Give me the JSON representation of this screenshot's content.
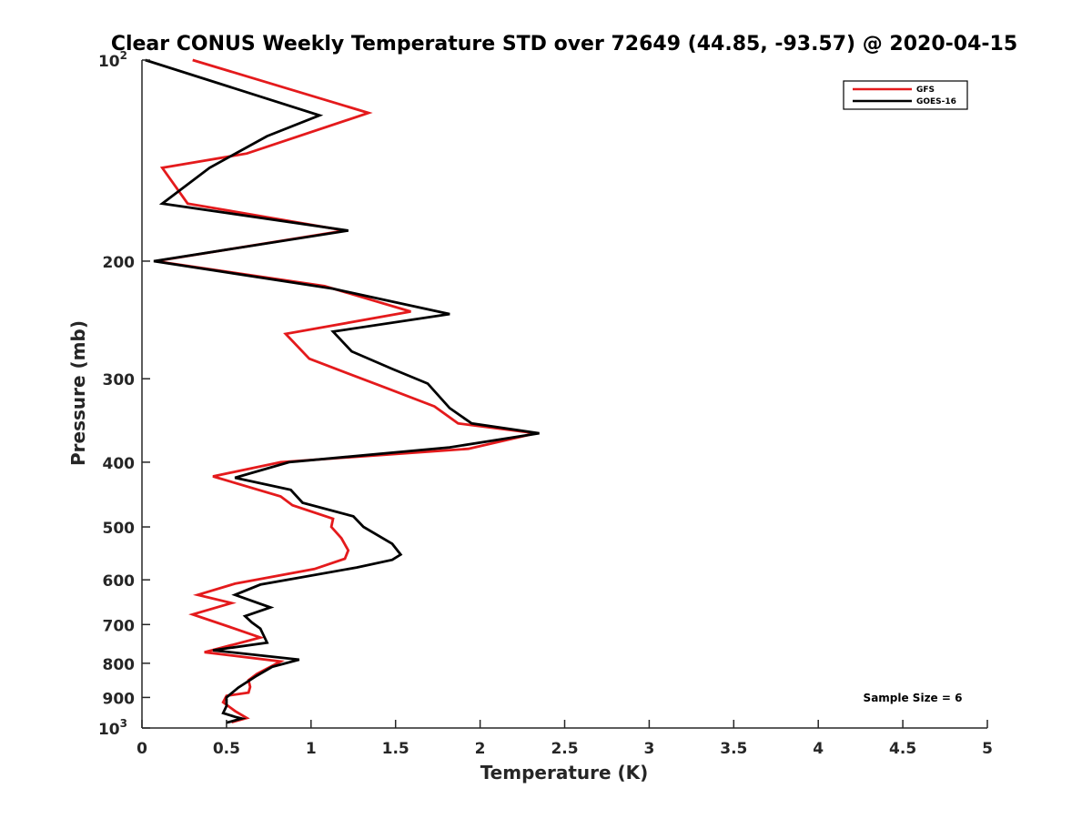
{
  "chart_data": {
    "type": "line",
    "title": "Clear CONUS Weekly Temperature STD over 72649 (44.85, -93.57) @ 2020-04-15",
    "xlabel": "Temperature (K)",
    "ylabel": "Pressure (mb)",
    "xlim": [
      0,
      5
    ],
    "ylim": [
      100,
      1000
    ],
    "yscale": "log",
    "y_reversed": true,
    "grid": false,
    "legend_position": "top-right",
    "x_ticks": [
      {
        "value": 0,
        "label": "0"
      },
      {
        "value": 0.5,
        "label": "0.5"
      },
      {
        "value": 1,
        "label": "1"
      },
      {
        "value": 1.5,
        "label": "1.5"
      },
      {
        "value": 2,
        "label": "2"
      },
      {
        "value": 2.5,
        "label": "2.5"
      },
      {
        "value": 3,
        "label": "3"
      },
      {
        "value": 3.5,
        "label": "3.5"
      },
      {
        "value": 4,
        "label": "4"
      },
      {
        "value": 4.5,
        "label": "4.5"
      },
      {
        "value": 5,
        "label": "5"
      }
    ],
    "y_ticks": [
      {
        "value": 100,
        "base": "10",
        "exp": "2"
      },
      {
        "value": 200,
        "base": "200",
        "exp": ""
      },
      {
        "value": 300,
        "base": "300",
        "exp": ""
      },
      {
        "value": 400,
        "base": "400",
        "exp": ""
      },
      {
        "value": 500,
        "base": "500",
        "exp": ""
      },
      {
        "value": 600,
        "base": "600",
        "exp": ""
      },
      {
        "value": 700,
        "base": "700",
        "exp": ""
      },
      {
        "value": 800,
        "base": "800",
        "exp": ""
      },
      {
        "value": 900,
        "base": "900",
        "exp": ""
      },
      {
        "value": 1000,
        "base": "10",
        "exp": "3"
      }
    ],
    "annotation": "Sample Size = 6",
    "series": [
      {
        "name": "GFS",
        "color": "#e41a1c",
        "points": [
          [
            0.3,
            100
          ],
          [
            1.34,
            120
          ],
          [
            0.62,
            138
          ],
          [
            0.12,
            145
          ],
          [
            0.27,
            164
          ],
          [
            1.2,
            180
          ],
          [
            0.08,
            200
          ],
          [
            1.08,
            218
          ],
          [
            1.59,
            238
          ],
          [
            0.85,
            257
          ],
          [
            0.99,
            280
          ],
          [
            1.45,
            310
          ],
          [
            1.73,
            330
          ],
          [
            1.87,
            350
          ],
          [
            2.33,
            362
          ],
          [
            1.93,
            382
          ],
          [
            0.82,
            400
          ],
          [
            0.42,
            420
          ],
          [
            0.82,
            450
          ],
          [
            0.89,
            464
          ],
          [
            1.13,
            486
          ],
          [
            1.12,
            500
          ],
          [
            1.18,
            520
          ],
          [
            1.22,
            542
          ],
          [
            1.2,
            558
          ],
          [
            1.02,
            578
          ],
          [
            0.55,
            608
          ],
          [
            0.33,
            632
          ],
          [
            0.53,
            650
          ],
          [
            0.3,
            676
          ],
          [
            0.52,
            706
          ],
          [
            0.7,
            732
          ],
          [
            0.37,
            770
          ],
          [
            0.82,
            795
          ],
          [
            0.68,
            830
          ],
          [
            0.63,
            848
          ],
          [
            0.64,
            868
          ],
          [
            0.63,
            885
          ],
          [
            0.5,
            895
          ],
          [
            0.48,
            915
          ],
          [
            0.55,
            943
          ],
          [
            0.62,
            966
          ],
          [
            0.53,
            980
          ]
        ]
      },
      {
        "name": "GOES-16",
        "color": "#000000",
        "points": [
          [
            0.02,
            100
          ],
          [
            1.05,
            121
          ],
          [
            0.74,
            130
          ],
          [
            0.4,
            145
          ],
          [
            0.12,
            164
          ],
          [
            1.22,
            180
          ],
          [
            0.07,
            200
          ],
          [
            1.13,
            220
          ],
          [
            1.82,
            240
          ],
          [
            1.13,
            255
          ],
          [
            1.24,
            273
          ],
          [
            1.48,
            290
          ],
          [
            1.69,
            305
          ],
          [
            1.82,
            332
          ],
          [
            1.95,
            350
          ],
          [
            2.35,
            362
          ],
          [
            1.82,
            380
          ],
          [
            0.87,
            400
          ],
          [
            0.55,
            422
          ],
          [
            0.88,
            440
          ],
          [
            0.95,
            460
          ],
          [
            1.25,
            482
          ],
          [
            1.31,
            500
          ],
          [
            1.48,
            530
          ],
          [
            1.53,
            550
          ],
          [
            1.48,
            560
          ],
          [
            1.27,
            575
          ],
          [
            0.7,
            610
          ],
          [
            0.55,
            632
          ],
          [
            0.76,
            660
          ],
          [
            0.61,
            680
          ],
          [
            0.65,
            695
          ],
          [
            0.7,
            710
          ],
          [
            0.74,
            745
          ],
          [
            0.42,
            765
          ],
          [
            0.93,
            790
          ],
          [
            0.77,
            810
          ],
          [
            0.68,
            835
          ],
          [
            0.57,
            870
          ],
          [
            0.5,
            900
          ],
          [
            0.5,
            927
          ],
          [
            0.48,
            950
          ],
          [
            0.55,
            962
          ],
          [
            0.59,
            968
          ],
          [
            0.5,
            982
          ]
        ]
      }
    ]
  }
}
